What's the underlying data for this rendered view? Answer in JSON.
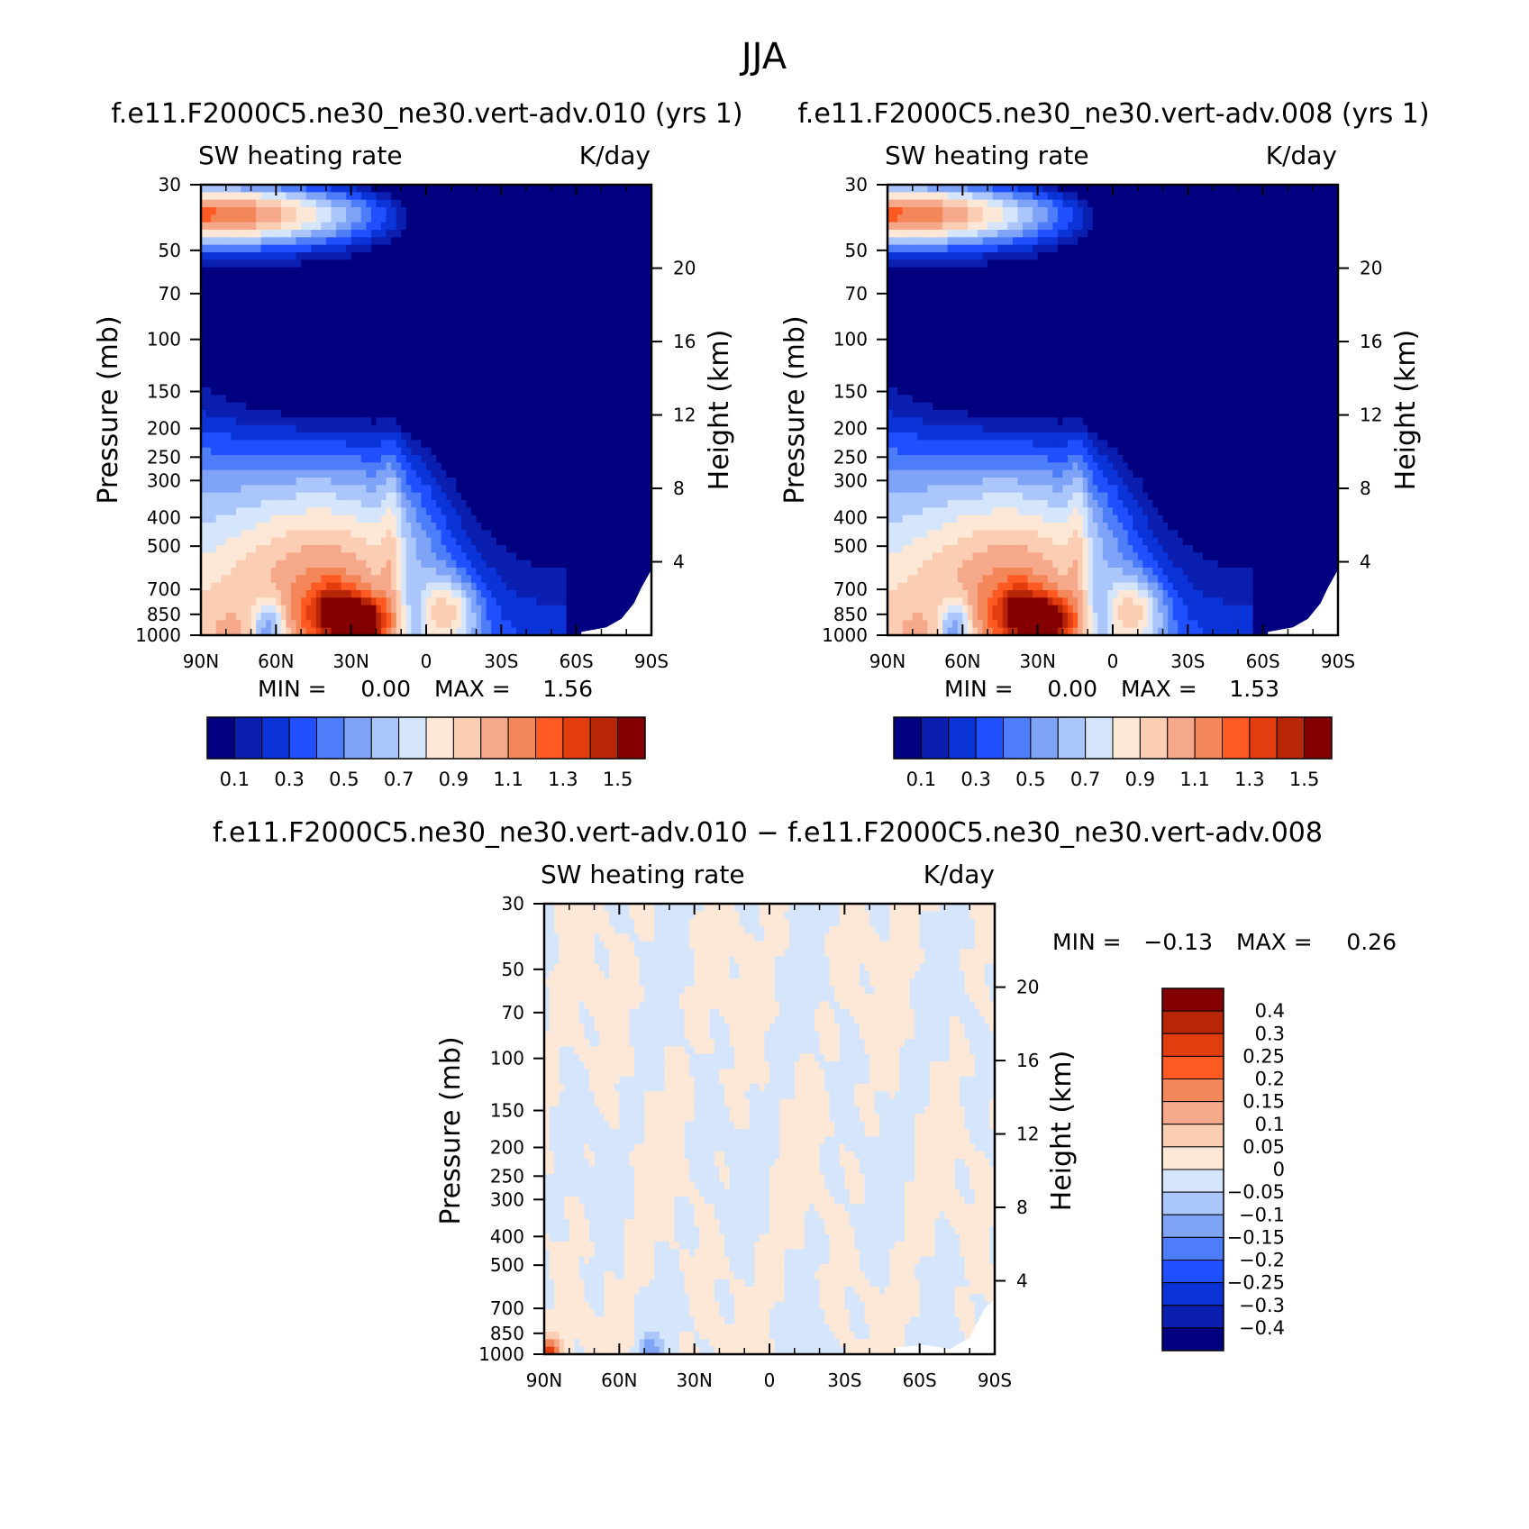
{
  "figure": {
    "season": "JJA",
    "panels": [
      {
        "run_title": "f.e11.F2000C5.ne30_ne30.vert-adv.010 (yrs 1)",
        "variable": "SW heating rate",
        "units": "K/day",
        "ylabel": "Pressure (mb)",
        "y2label": "Height (km)",
        "stats": {
          "min_label": "MIN =",
          "min_value": "0.00",
          "max_label": "MAX =",
          "max_value": "1.56"
        }
      },
      {
        "run_title": "f.e11.F2000C5.ne30_ne30.vert-adv.008 (yrs 1)",
        "variable": "SW heating rate",
        "units": "K/day",
        "ylabel": "Pressure (mb)",
        "y2label": "Height (km)",
        "stats": {
          "min_label": "MIN =",
          "min_value": "0.00",
          "max_label": "MAX =",
          "max_value": "1.53"
        }
      },
      {
        "run_title": "f.e11.F2000C5.ne30_ne30.vert-adv.010 − f.e11.F2000C5.ne30_ne30.vert-adv.008",
        "variable": "SW heating rate",
        "units": "K/day",
        "ylabel": "Pressure (mb)",
        "y2label": "Height (km)",
        "stats": {
          "min_label": "MIN =",
          "min_value": "−0.13",
          "max_label": "MAX =",
          "max_value": "0.26"
        }
      }
    ],
    "colors": {
      "absolute": [
        "#000080",
        "#0a1fb0",
        "#0a33d8",
        "#1f4fff",
        "#4d7df8",
        "#7ea3f7",
        "#abc6fb",
        "#d5e6fc",
        "#fde8d7",
        "#fbcdb3",
        "#f6a98a",
        "#f48759",
        "#fd5a23",
        "#e13d0e",
        "#b72606",
        "#840000"
      ],
      "difference": [
        "#000080",
        "#0a1fb0",
        "#0a33d8",
        "#1f4fff",
        "#4d7df8",
        "#7ea3f7",
        "#abc6fb",
        "#d5e6fc",
        "#fde8d7",
        "#fbcdb3",
        "#f6a98a",
        "#f48759",
        "#fd5a23",
        "#e13d0e",
        "#b72606",
        "#840000"
      ]
    }
  },
  "chart_data": [
    {
      "type": "heatmap",
      "title": "SW heating rate",
      "units": "K/day",
      "x": [
        "90N",
        "60N",
        "30N",
        "0",
        "30S",
        "60S",
        "90S"
      ],
      "x_values": [
        90,
        60,
        30,
        0,
        -30,
        -60,
        -90
      ],
      "y_ticks": [
        30,
        50,
        70,
        100,
        150,
        200,
        250,
        300,
        400,
        500,
        700,
        850,
        1000
      ],
      "y2_ticks": [
        20,
        16,
        12,
        8,
        4
      ],
      "ylabel": "Pressure (mb)",
      "y2label": "Height (km)",
      "xlim": [
        90,
        -90
      ],
      "ylim": [
        1000,
        30
      ],
      "contour_levels": [
        0.1,
        0.2,
        0.3,
        0.4,
        0.5,
        0.6,
        0.7,
        0.8,
        0.9,
        1.0,
        1.1,
        1.2,
        1.3,
        1.4,
        1.5
      ],
      "colorbar_labels": [
        "0.1",
        "0.3",
        "0.5",
        "0.7",
        "0.9",
        "1.1",
        "1.3",
        "1.5"
      ],
      "min": 0.0,
      "max": 1.56
    },
    {
      "type": "heatmap",
      "title": "SW heating rate",
      "units": "K/day",
      "x": [
        "90N",
        "60N",
        "30N",
        "0",
        "30S",
        "60S",
        "90S"
      ],
      "x_values": [
        90,
        60,
        30,
        0,
        -30,
        -60,
        -90
      ],
      "y_ticks": [
        30,
        50,
        70,
        100,
        150,
        200,
        250,
        300,
        400,
        500,
        700,
        850,
        1000
      ],
      "y2_ticks": [
        20,
        16,
        12,
        8,
        4
      ],
      "ylabel": "Pressure (mb)",
      "y2label": "Height (km)",
      "xlim": [
        90,
        -90
      ],
      "ylim": [
        1000,
        30
      ],
      "contour_levels": [
        0.1,
        0.2,
        0.3,
        0.4,
        0.5,
        0.6,
        0.7,
        0.8,
        0.9,
        1.0,
        1.1,
        1.2,
        1.3,
        1.4,
        1.5
      ],
      "colorbar_labels": [
        "0.1",
        "0.3",
        "0.5",
        "0.7",
        "0.9",
        "1.1",
        "1.3",
        "1.5"
      ],
      "min": 0.0,
      "max": 1.53
    },
    {
      "type": "heatmap",
      "title": "SW heating rate",
      "units": "K/day",
      "x": [
        "90N",
        "60N",
        "30N",
        "0",
        "30S",
        "60S",
        "90S"
      ],
      "x_values": [
        90,
        60,
        30,
        0,
        -30,
        -60,
        -90
      ],
      "y_ticks": [
        30,
        50,
        70,
        100,
        150,
        200,
        250,
        300,
        400,
        500,
        700,
        850,
        1000
      ],
      "y2_ticks": [
        20,
        16,
        12,
        8,
        4
      ],
      "ylabel": "Pressure (mb)",
      "y2label": "Height (km)",
      "xlim": [
        90,
        -90
      ],
      "ylim": [
        1000,
        30
      ],
      "contour_levels": [
        -0.4,
        -0.3,
        -0.25,
        -0.2,
        -0.15,
        -0.1,
        -0.05,
        0,
        0.05,
        0.1,
        0.15,
        0.2,
        0.25,
        0.3,
        0.4
      ],
      "colorbar_labels": [
        "0.4",
        "0.3",
        "0.25",
        "0.2",
        "0.15",
        "0.1",
        "0.05",
        "0",
        "−0.05",
        "−0.1",
        "−0.15",
        "−0.2",
        "−0.25",
        "−0.3",
        "−0.4"
      ],
      "min": -0.13,
      "max": 0.26
    }
  ]
}
